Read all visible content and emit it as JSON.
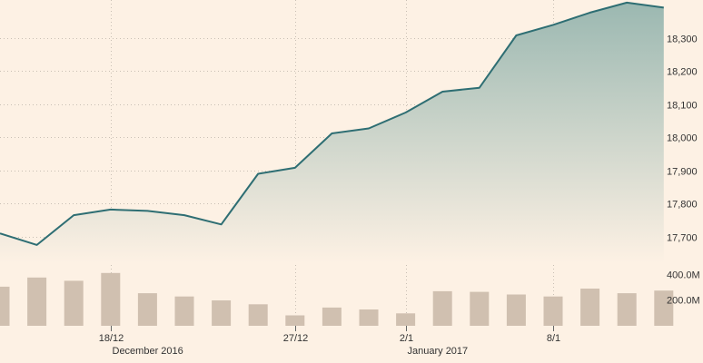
{
  "chart_data": [
    {
      "type": "area",
      "series": [
        {
          "values": [
            17710,
            17675,
            17765,
            17782,
            17778,
            17765,
            17737,
            17890,
            17908,
            18012,
            18027,
            18075,
            18138,
            18150,
            18308,
            18340,
            18377,
            18407,
            18392
          ]
        }
      ],
      "ylim": [
        17620,
        18415
      ],
      "y_ticks": [
        "17,700",
        "17,800",
        "17,900",
        "18,000",
        "18,100",
        "18,200",
        "18,300"
      ],
      "y_tick_values": [
        17700,
        17800,
        17900,
        18000,
        18100,
        18200,
        18300
      ],
      "grid": true,
      "colors": {
        "line": "#2e6e73",
        "fill_top": "#9bb8b1",
        "fill_bottom": "#fdf1e4"
      }
    },
    {
      "type": "bar",
      "values": [
        300,
        370,
        345,
        405,
        250,
        225,
        195,
        165,
        80,
        140,
        125,
        95,
        265,
        260,
        240,
        225,
        285,
        250,
        270
      ],
      "ylim": [
        0,
        480
      ],
      "y_ticks": [
        "200.0M",
        "400.0M"
      ],
      "y_tick_values": [
        200,
        400
      ],
      "colors": {
        "bar": "#d0c0b0"
      }
    }
  ],
  "x_axis": {
    "ticks": [
      {
        "index": 3,
        "label": "18/12",
        "period": "December 2016"
      },
      {
        "index": 8,
        "label": "27/12",
        "period": ""
      },
      {
        "index": 11,
        "label": "2/1",
        "period": "January 2017"
      },
      {
        "index": 15,
        "label": "8/1",
        "period": ""
      }
    ]
  }
}
